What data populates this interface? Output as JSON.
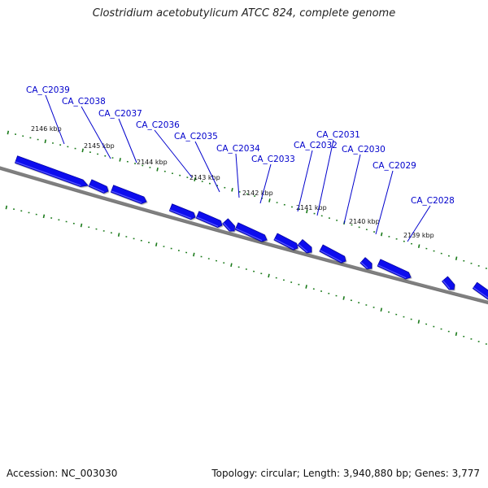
{
  "title": "Clostridium acetobutylicum ATCC 824, complete genome",
  "accession": "Accession: NC_003030",
  "summary": "Topology: circular; Length: 3,940,880 bp; Genes: 3,777",
  "colors": {
    "gene": "#1010ee",
    "gene_top": "#5a5aff",
    "gene_side": "#0000a8",
    "backbone": "#808080",
    "tick": "#1a7a1a",
    "label_line": "#0000cc"
  },
  "tick_labels": [
    "2146 kbp",
    "2145 kbp",
    "2144 kbp",
    "2143 kbp",
    "2142 kbp",
    "2141 kbp",
    "2140 kbp",
    "2139 kbp"
  ],
  "genes": [
    {
      "label": "CA_C2039"
    },
    {
      "label": "CA_C2038"
    },
    {
      "label": "CA_C2037"
    },
    {
      "label": "CA_C2036"
    },
    {
      "label": "CA_C2035"
    },
    {
      "label": "CA_C2034"
    },
    {
      "label": "CA_C2033"
    },
    {
      "label": "CA_C2032"
    },
    {
      "label": "CA_C2031"
    },
    {
      "label": "CA_C2030"
    },
    {
      "label": "CA_C2029"
    },
    {
      "label": "CA_C2028"
    }
  ]
}
